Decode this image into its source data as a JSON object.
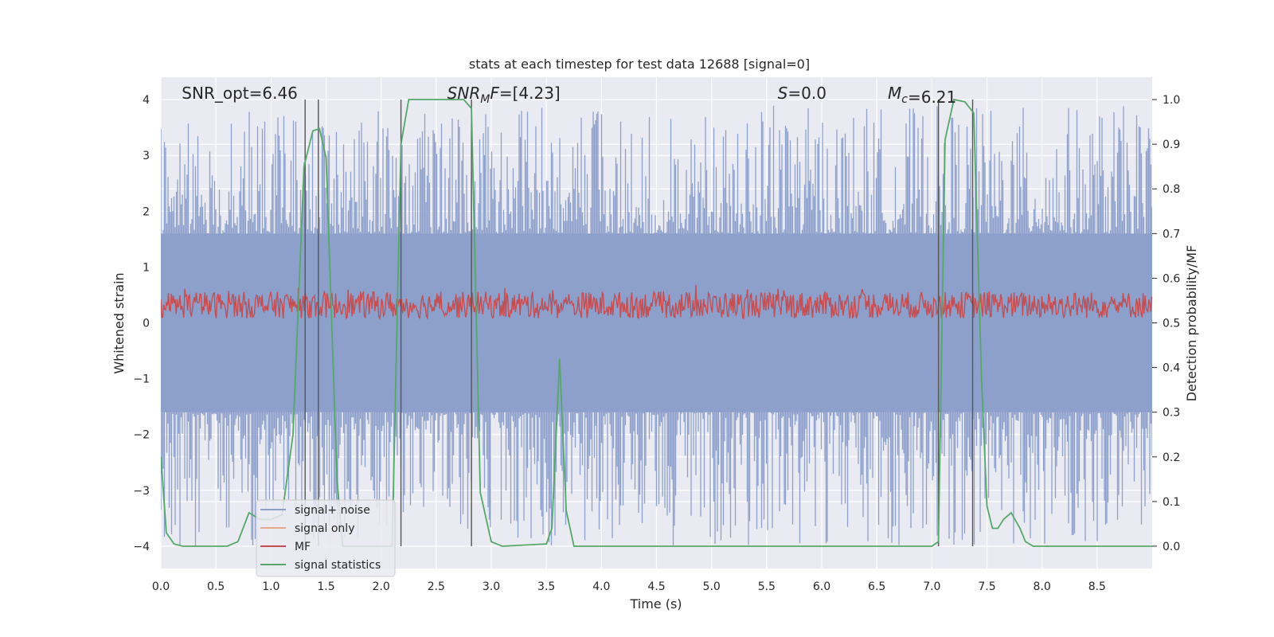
{
  "chart_data": {
    "type": "line",
    "title": "stats at each timestep for test data 12688 [signal=0]",
    "xlabel": "Time (s)",
    "ylabel_left": "Whitened strain",
    "ylabel_right": "Detection probability/MF",
    "xlim": [
      0,
      9
    ],
    "ylim_left": [
      -4.4,
      4.4
    ],
    "ylim_right": [
      -0.05,
      1.05
    ],
    "x_ticks": [
      "0.0",
      "0.5",
      "1.0",
      "1.5",
      "2.0",
      "2.5",
      "3.0",
      "3.5",
      "4.0",
      "4.5",
      "5.0",
      "5.5",
      "6.0",
      "6.5",
      "7.0",
      "7.5",
      "8.0",
      "8.5"
    ],
    "left_ticks": [
      "4",
      "3",
      "2",
      "1",
      "0",
      "−1",
      "−2",
      "−3",
      "−4"
    ],
    "right_ticks": [
      "1.0",
      "0.9",
      "0.8",
      "0.7",
      "0.6",
      "0.5",
      "0.4",
      "0.3",
      "0.2",
      "0.1",
      "0.0"
    ],
    "grid": true,
    "legend_placement": "lower-left",
    "annotations": [
      {
        "name": "snr-opt",
        "label": "SNR_opt",
        "value": "6.46",
        "x_data": 0.19
      },
      {
        "name": "snr-mf",
        "label": "SNR",
        "sub": "M",
        "suffix": "F",
        "value": "[4.23]",
        "x_data": 2.6
      },
      {
        "name": "s-stat",
        "label": "S",
        "value": "0.0",
        "x_data": 5.6
      },
      {
        "name": "chirp-mass",
        "label": "M",
        "sub": "c",
        "value": "6.21",
        "x_data": 6.6
      }
    ],
    "vertical_lines": [
      1.31,
      1.43,
      2.18,
      2.82,
      7.06,
      7.37
    ],
    "series": [
      {
        "name": "signal+ noise",
        "color": "#8da0cb",
        "axis": "left",
        "envelope": {
          "core": 1.6,
          "peak_max": 3.9,
          "peak_min": -4.0
        }
      },
      {
        "name": "signal only",
        "color": "#e8a88a",
        "axis": "left",
        "values": []
      },
      {
        "name": "MF",
        "color": "#c44e52",
        "axis": "right",
        "band": [
          0.51,
          0.57
        ]
      },
      {
        "name": "signal statistics",
        "color": "#55a868",
        "axis": "right",
        "points": [
          [
            0.0,
            0.2
          ],
          [
            0.05,
            0.03
          ],
          [
            0.12,
            0.005
          ],
          [
            0.2,
            0.0
          ],
          [
            0.6,
            0.0
          ],
          [
            0.7,
            0.01
          ],
          [
            0.8,
            0.075
          ],
          [
            0.9,
            0.06
          ],
          [
            1.0,
            0.06
          ],
          [
            1.1,
            0.07
          ],
          [
            1.2,
            0.25
          ],
          [
            1.3,
            0.85
          ],
          [
            1.38,
            0.93
          ],
          [
            1.44,
            0.935
          ],
          [
            1.5,
            0.87
          ],
          [
            1.6,
            0.15
          ],
          [
            1.65,
            0.0
          ],
          [
            2.1,
            0.0
          ],
          [
            2.18,
            0.9
          ],
          [
            2.25,
            1.0
          ],
          [
            2.75,
            1.0
          ],
          [
            2.82,
            0.98
          ],
          [
            2.9,
            0.12
          ],
          [
            3.0,
            0.01
          ],
          [
            3.1,
            0.0
          ],
          [
            3.5,
            0.005
          ],
          [
            3.55,
            0.04
          ],
          [
            3.62,
            0.42
          ],
          [
            3.68,
            0.08
          ],
          [
            3.75,
            0.0
          ],
          [
            7.0,
            0.0
          ],
          [
            7.06,
            0.01
          ],
          [
            7.12,
            0.91
          ],
          [
            7.2,
            1.0
          ],
          [
            7.3,
            0.995
          ],
          [
            7.38,
            0.97
          ],
          [
            7.45,
            0.38
          ],
          [
            7.5,
            0.09
          ],
          [
            7.55,
            0.04
          ],
          [
            7.6,
            0.04
          ],
          [
            7.65,
            0.06
          ],
          [
            7.72,
            0.075
          ],
          [
            7.8,
            0.04
          ],
          [
            7.85,
            0.01
          ],
          [
            7.92,
            0.0
          ],
          [
            9.0,
            0.0
          ]
        ]
      }
    ]
  }
}
